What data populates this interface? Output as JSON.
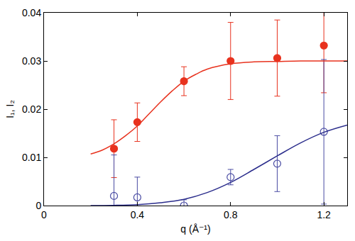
{
  "chart_data": {
    "type": "scatter",
    "x_label": "q (Å⁻¹)",
    "y_label": "I₁, I₂",
    "xlim": [
      0,
      1.3
    ],
    "xticks": [
      0,
      0.4,
      0.8,
      1.2
    ],
    "ylim": [
      0,
      0.04
    ],
    "yticks": [
      0,
      0.01,
      0.02,
      0.03,
      0.04
    ],
    "grid": false,
    "series": [
      {
        "type": "scatter",
        "marker": "circle",
        "color": "#e8321e",
        "x": [
          0.3,
          0.4,
          0.6,
          0.8,
          1.0,
          1.2
        ],
        "values": [
          0.0118,
          0.0173,
          0.0258,
          0.03,
          0.0306,
          0.0332
        ],
        "error": [
          0.006,
          0.004,
          0.003,
          0.008,
          0.0079,
          0.0098
        ]
      },
      {
        "type": "scatter",
        "marker": "open-circle",
        "color": "#4a4ca3",
        "x": [
          0.3,
          0.4,
          0.6,
          0.8,
          1.0,
          1.2
        ],
        "values": [
          0.002,
          0.0017,
          0.0,
          0.0059,
          0.0087,
          0.0153
        ],
        "error": [
          0.0085,
          0.0042,
          0.0012,
          0.0016,
          0.0058,
          0.015
        ]
      },
      {
        "type": "line",
        "line_style": "solid",
        "color": "#e8321e",
        "x": [
          0.2,
          0.25,
          0.3,
          0.35,
          0.4,
          0.45,
          0.5,
          0.55,
          0.6,
          0.65,
          0.7,
          0.8,
          0.9,
          1.0,
          1.1,
          1.2,
          1.3
        ],
        "values": [
          0.0107,
          0.0115,
          0.0128,
          0.0145,
          0.0165,
          0.019,
          0.0215,
          0.0238,
          0.0258,
          0.0272,
          0.0283,
          0.0294,
          0.0298,
          0.0299,
          0.03,
          0.03,
          0.03
        ]
      },
      {
        "type": "line",
        "line_style": "solid",
        "color": "#2b2d8c",
        "x": [
          0.2,
          0.3,
          0.4,
          0.5,
          0.6,
          0.7,
          0.8,
          0.9,
          1.0,
          1.1,
          1.2,
          1.3
        ],
        "values": [
          0.0,
          5e-05,
          0.0002,
          0.0006,
          0.0013,
          0.0027,
          0.0048,
          0.0075,
          0.0103,
          0.013,
          0.0152,
          0.0167
        ]
      }
    ]
  }
}
